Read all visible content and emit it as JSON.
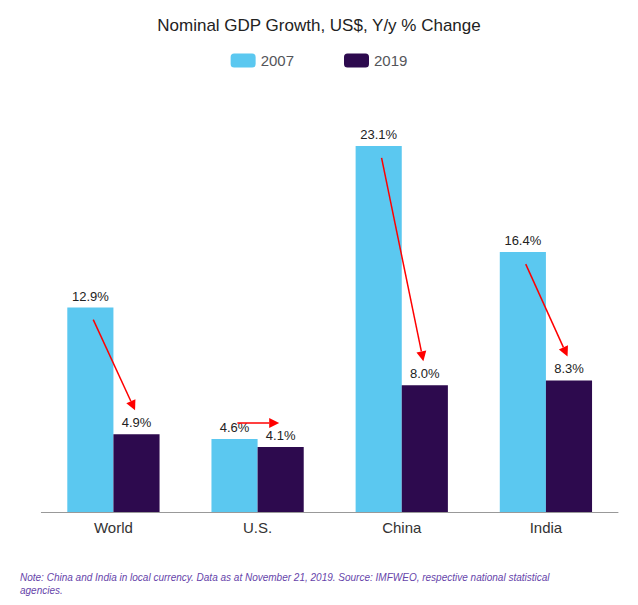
{
  "chart_data": {
    "type": "bar",
    "title": "Nominal GDP Growth, US$, Y/y % Change",
    "categories": [
      "World",
      "U.S.",
      "China",
      "India"
    ],
    "series": [
      {
        "name": "2007",
        "color": "#5BC8F0",
        "values": [
          12.9,
          4.6,
          23.1,
          16.4
        ],
        "value_labels": [
          "12.9%",
          "4.6%",
          "23.1%",
          "16.4%"
        ]
      },
      {
        "name": "2019",
        "color": "#2D0A4E",
        "values": [
          4.9,
          4.1,
          8.0,
          8.3
        ],
        "value_labels": [
          "4.9%",
          "4.1%",
          "8.0%",
          "8.3%"
        ]
      }
    ],
    "ylim": [
      0,
      26
    ],
    "tick_labels": "x",
    "grid": false,
    "legend": "top",
    "data_labels": true,
    "note": "Note: China and India in local currency. Data as at November 21, 2019. Source: IMFWEO, respective national statistical\nagencies.",
    "annotations": [
      {
        "type": "arrow",
        "from": "2007",
        "to": "2019",
        "color": "red"
      }
    ]
  }
}
